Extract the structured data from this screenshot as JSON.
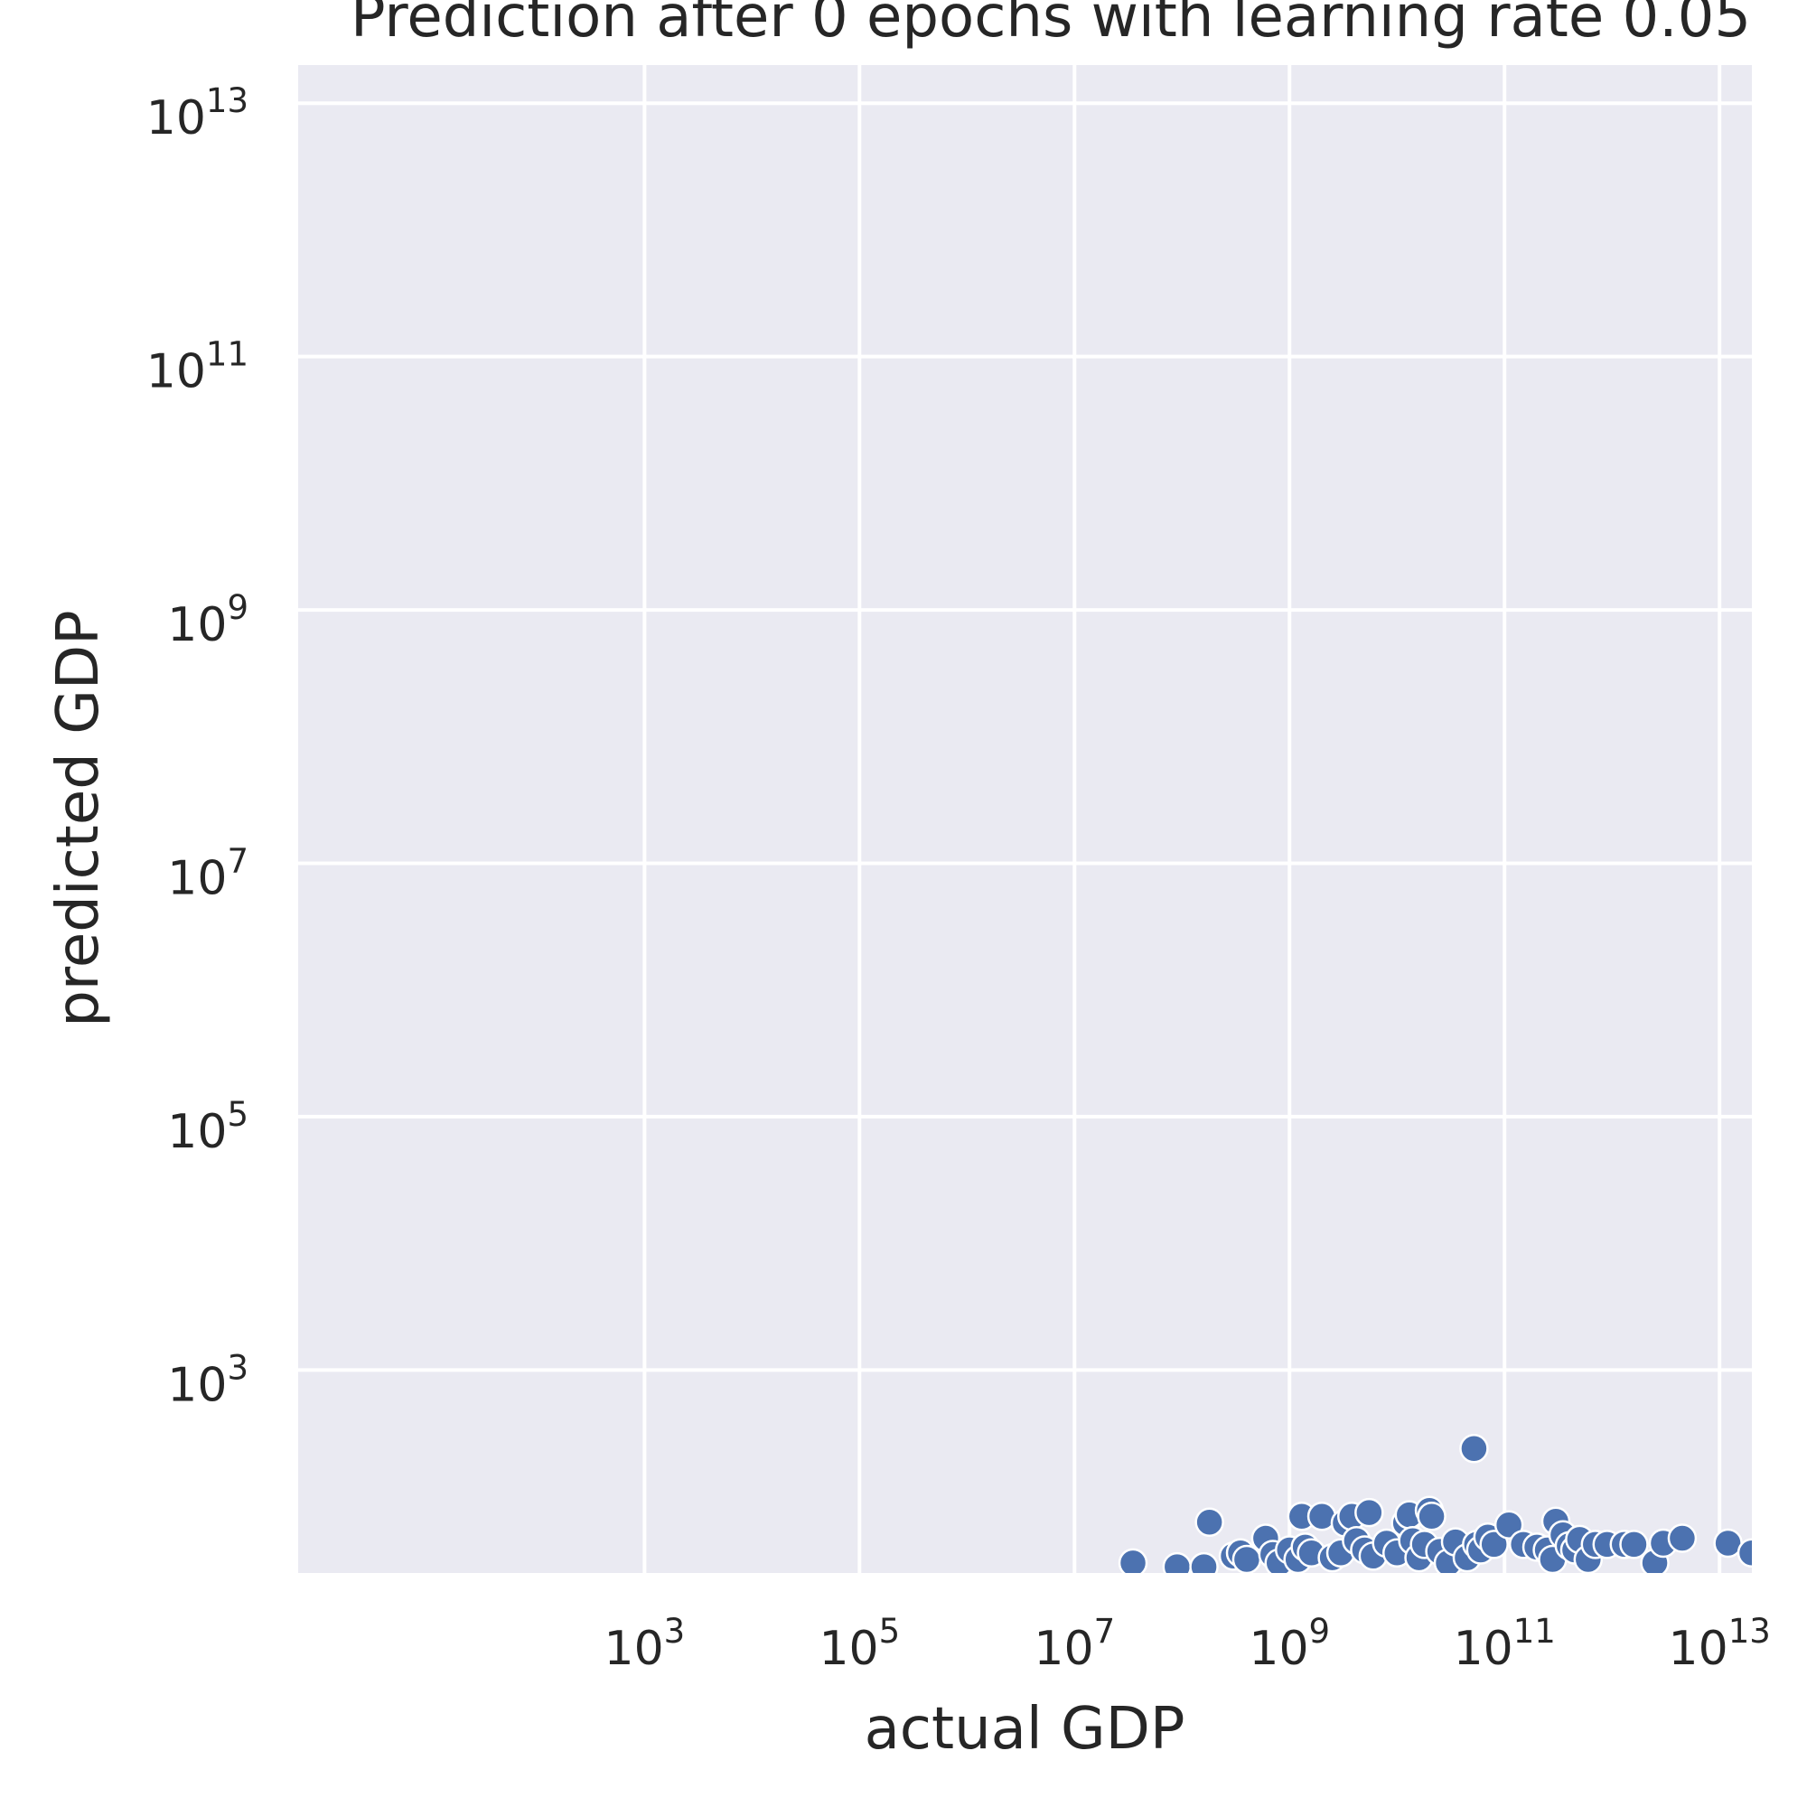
{
  "chart_data": {
    "type": "scatter",
    "title": "Prediction after 0 epochs with learning rate 0.05",
    "xlabel": "actual GDP",
    "ylabel": "predicted GDP",
    "xscale": "log",
    "yscale": "log",
    "xlim": [
      0.6,
      20000000000000.0
    ],
    "ylim": [
      25,
      20000000000000.0
    ],
    "xticks": [
      {
        "mantissa": "10",
        "exponent": "3",
        "value": 1000.0
      },
      {
        "mantissa": "10",
        "exponent": "5",
        "value": 100000.0
      },
      {
        "mantissa": "10",
        "exponent": "7",
        "value": 10000000.0
      },
      {
        "mantissa": "10",
        "exponent": "9",
        "value": 1000000000.0
      },
      {
        "mantissa": "10",
        "exponent": "11",
        "value": 100000000000.0
      },
      {
        "mantissa": "10",
        "exponent": "13",
        "value": 10000000000000.0
      }
    ],
    "yticks": [
      {
        "mantissa": "10",
        "exponent": "3",
        "value": 1000.0
      },
      {
        "mantissa": "10",
        "exponent": "5",
        "value": 100000.0
      },
      {
        "mantissa": "10",
        "exponent": "7",
        "value": 10000000.0
      },
      {
        "mantissa": "10",
        "exponent": "9",
        "value": 1000000000.0
      },
      {
        "mantissa": "10",
        "exponent": "11",
        "value": 100000000000.0
      },
      {
        "mantissa": "10",
        "exponent": "13",
        "value": 10000000000000.0
      }
    ],
    "grid": true,
    "colors": {
      "background": "#eaeaf2",
      "grid": "#ffffff",
      "marker": "#4c72b0",
      "marker_edge": "#ffffff"
    },
    "series": [
      {
        "points": [
          [
            35000000.0,
            30
          ],
          [
            90000000.0,
            28
          ],
          [
            160000000.0,
            28
          ],
          [
            180000000.0,
            63
          ],
          [
            300000000.0,
            34
          ],
          [
            350000000.0,
            36
          ],
          [
            400000000.0,
            32
          ],
          [
            600000000.0,
            47
          ],
          [
            700000000.0,
            35
          ],
          [
            800000000.0,
            30
          ],
          [
            1000000000.0,
            38
          ],
          [
            1200000000.0,
            32
          ],
          [
            1300000000.0,
            70
          ],
          [
            1400000000.0,
            40
          ],
          [
            1600000000.0,
            36
          ],
          [
            2000000000.0,
            70
          ],
          [
            2500000000.0,
            33
          ],
          [
            3000000000.0,
            36
          ],
          [
            3300000000.0,
            62
          ],
          [
            3800000000.0,
            70
          ],
          [
            4200000000.0,
            45
          ],
          [
            5000000000.0,
            38
          ],
          [
            5500000000.0,
            75
          ],
          [
            6000000000.0,
            34
          ],
          [
            8000000000.0,
            43
          ],
          [
            10000000000.0,
            36
          ],
          [
            12000000000.0,
            62
          ],
          [
            13000000000.0,
            72
          ],
          [
            14000000000.0,
            45
          ],
          [
            16000000000.0,
            33
          ],
          [
            18000000000.0,
            42
          ],
          [
            20000000000.0,
            78
          ],
          [
            21000000000.0,
            70
          ],
          [
            25000000000.0,
            37
          ],
          [
            30000000000.0,
            30
          ],
          [
            35000000000.0,
            44
          ],
          [
            45000000000.0,
            33
          ],
          [
            52000000000.0,
            240
          ],
          [
            55000000000.0,
            42
          ],
          [
            60000000000.0,
            38
          ],
          [
            70000000000.0,
            48
          ],
          [
            80000000000.0,
            42
          ],
          [
            110000000000.0,
            60
          ],
          [
            150000000000.0,
            42
          ],
          [
            200000000000.0,
            40
          ],
          [
            250000000000.0,
            38
          ],
          [
            280000000000.0,
            32
          ],
          [
            300000000000.0,
            64
          ],
          [
            350000000000.0,
            50
          ],
          [
            400000000000.0,
            41
          ],
          [
            450000000000.0,
            38
          ],
          [
            500000000000.0,
            46
          ],
          [
            600000000000.0,
            32
          ],
          [
            700000000000.0,
            42
          ],
          [
            900000000000.0,
            42
          ],
          [
            1300000000000.0,
            42
          ],
          [
            1600000000000.0,
            42
          ],
          [
            2500000000000.0,
            30
          ],
          [
            3000000000000.0,
            43
          ],
          [
            4500000000000.0,
            47
          ],
          [
            12000000000000.0,
            43
          ],
          [
            20000000000000.0,
            36
          ]
        ]
      }
    ]
  }
}
